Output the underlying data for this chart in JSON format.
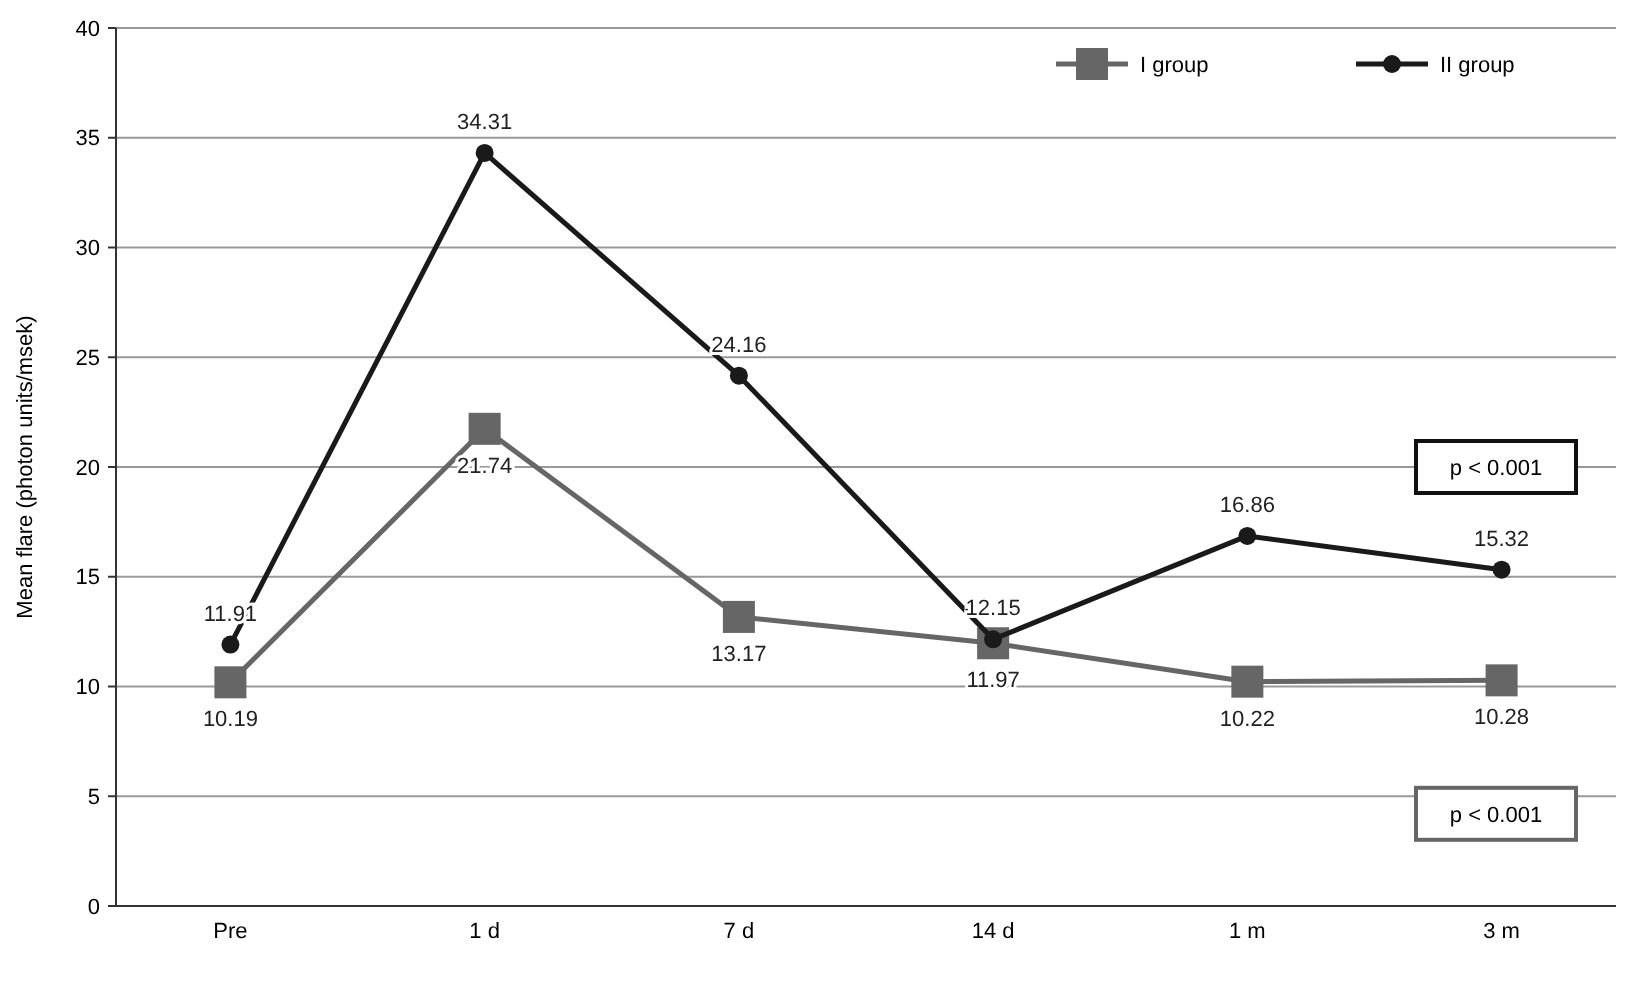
{
  "chart_data": {
    "type": "line",
    "ylabel": "Mean flare (photon units/msek)",
    "categories": [
      "Pre",
      "1 d",
      "7 d",
      "14 d",
      "1 m",
      "3 m"
    ],
    "series": [
      {
        "name": "I group",
        "color": "#666666",
        "marker": "square",
        "values": [
          10.19,
          21.74,
          13.17,
          11.97,
          10.22,
          10.28
        ]
      },
      {
        "name": "II group",
        "color": "#1a1a1a",
        "marker": "circle",
        "values": [
          11.91,
          34.31,
          24.16,
          12.15,
          16.86,
          15.32
        ]
      }
    ],
    "ylim": [
      0,
      40
    ],
    "yticks": [
      0,
      5,
      10,
      15,
      20,
      25,
      30,
      35,
      40
    ],
    "grid": "y",
    "legend": "top right",
    "data_labels": true,
    "annotations": [
      "p < 0.001",
      "p < 0.001"
    ]
  }
}
